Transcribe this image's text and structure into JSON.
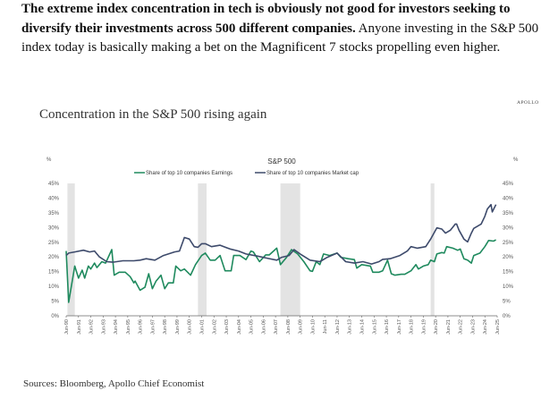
{
  "intro": {
    "bold": "The extreme index concentration in tech is obviously not good for investors seeking to diversify their investments across 500 different companies.",
    "rest": " Anyone investing in the S&P 500 index today is basically making a bet on the Magnificent 7 stocks propelling even higher."
  },
  "brand": "APOLLO",
  "figure_title": "Concentration in the S&P 500 rising again",
  "source": "Sources: Bloomberg, Apollo Chief Economist",
  "chart_data": {
    "type": "line",
    "title": "S&P 500",
    "ylabel_left": "%",
    "ylabel_right": "%",
    "ylim": [
      0,
      45
    ],
    "yticks": [
      "0%",
      "5%",
      "10%",
      "15%",
      "20%",
      "25%",
      "30%",
      "35%",
      "40%",
      "45%"
    ],
    "xlim": [
      1990.5,
      2025.5
    ],
    "xticks": [
      "Jun-90",
      "Jun-91",
      "Jun-92",
      "Jun-93",
      "Jun-94",
      "Jun-95",
      "Jun-96",
      "Jun-97",
      "Jun-98",
      "Jun-99",
      "Jun-00",
      "Jun-01",
      "Jun-02",
      "Jun-03",
      "Jun-04",
      "Jun-05",
      "Jun-06",
      "Jun-07",
      "Jun-08",
      "Jun-09",
      "Jun-10",
      "Jun-11",
      "Jun-12",
      "Jun-13",
      "Jun-14",
      "Jun-15",
      "Jun-16",
      "Jun-17",
      "Jun-18",
      "Jun-19",
      "Jun-20",
      "Jun-21",
      "Jun-22",
      "Jun-23",
      "Jun-24",
      "Jun-25"
    ],
    "legend_position": "top-center",
    "grid": false,
    "recessions": [
      [
        1990.6,
        1991.2
      ],
      [
        2001.2,
        2001.9
      ],
      [
        2007.9,
        2009.5
      ],
      [
        2020.1,
        2020.4
      ]
    ],
    "series": [
      {
        "name": "Share of top 10 companies Earnings",
        "color": "#1f8a5e",
        "points": [
          [
            1990.5,
            22
          ],
          [
            1990.7,
            4.6
          ],
          [
            1991.2,
            16.9
          ],
          [
            1991.5,
            12.8
          ],
          [
            1991.8,
            15.5
          ],
          [
            1992.0,
            12.8
          ],
          [
            1992.3,
            16.9
          ],
          [
            1992.5,
            15.9
          ],
          [
            1992.8,
            17.9
          ],
          [
            1993.0,
            16.4
          ],
          [
            1993.4,
            18.4
          ],
          [
            1993.7,
            17.9
          ],
          [
            1994.2,
            22.5
          ],
          [
            1994.4,
            13.8
          ],
          [
            1994.8,
            14.8
          ],
          [
            1995.3,
            14.8
          ],
          [
            1995.7,
            13.3
          ],
          [
            1996.0,
            11.2
          ],
          [
            1996.1,
            11.8
          ],
          [
            1996.5,
            8.7
          ],
          [
            1996.9,
            9.7
          ],
          [
            1997.2,
            14.3
          ],
          [
            1997.5,
            9.2
          ],
          [
            1997.8,
            11.8
          ],
          [
            1998.2,
            13.8
          ],
          [
            1998.5,
            9.2
          ],
          [
            1998.8,
            11.2
          ],
          [
            1999.2,
            11.2
          ],
          [
            1999.4,
            16.9
          ],
          [
            1999.8,
            15.3
          ],
          [
            2000.1,
            15.9
          ],
          [
            2000.6,
            13.8
          ],
          [
            2001.0,
            17.4
          ],
          [
            2001.5,
            20.5
          ],
          [
            2001.8,
            21.3
          ],
          [
            2002.2,
            18.9
          ],
          [
            2002.6,
            18.9
          ],
          [
            2003.0,
            20.5
          ],
          [
            2003.4,
            15.3
          ],
          [
            2003.9,
            15.3
          ],
          [
            2004.1,
            20.5
          ],
          [
            2004.6,
            20.5
          ],
          [
            2005.1,
            19.1
          ],
          [
            2005.5,
            22.0
          ],
          [
            2005.7,
            21.7
          ],
          [
            2006.2,
            18.4
          ],
          [
            2006.7,
            20.7
          ],
          [
            2007.0,
            20.7
          ],
          [
            2007.6,
            23.0
          ],
          [
            2007.9,
            17.4
          ],
          [
            2008.4,
            19.9
          ],
          [
            2008.8,
            22.5
          ],
          [
            2009.3,
            21
          ],
          [
            2009.8,
            18.4
          ],
          [
            2010.3,
            15.3
          ],
          [
            2010.5,
            15.1
          ],
          [
            2010.8,
            18.4
          ],
          [
            2011.1,
            17.4
          ],
          [
            2011.4,
            21
          ],
          [
            2011.9,
            20.5
          ],
          [
            2012.5,
            21.3
          ],
          [
            2012.8,
            19.9
          ],
          [
            2013.4,
            19.4
          ],
          [
            2013.9,
            19.1
          ],
          [
            2014.1,
            16.2
          ],
          [
            2014.5,
            17.4
          ],
          [
            2015.2,
            16.9
          ],
          [
            2015.4,
            14.8
          ],
          [
            2015.9,
            14.8
          ],
          [
            2016.2,
            15.3
          ],
          [
            2016.6,
            18.9
          ],
          [
            2016.9,
            14.3
          ],
          [
            2017.2,
            13.8
          ],
          [
            2017.7,
            14.1
          ],
          [
            2018.0,
            14.1
          ],
          [
            2018.5,
            15.3
          ],
          [
            2018.9,
            17.4
          ],
          [
            2019.1,
            15.9
          ],
          [
            2019.5,
            16.9
          ],
          [
            2019.9,
            17.4
          ],
          [
            2020.1,
            18.9
          ],
          [
            2020.4,
            18.4
          ],
          [
            2020.6,
            21
          ],
          [
            2021.0,
            21.5
          ],
          [
            2021.2,
            21.3
          ],
          [
            2021.4,
            23.5
          ],
          [
            2021.9,
            23
          ],
          [
            2022.3,
            22.3
          ],
          [
            2022.5,
            22.7
          ],
          [
            2022.8,
            19.4
          ],
          [
            2023.1,
            18.9
          ],
          [
            2023.4,
            17.9
          ],
          [
            2023.6,
            20.5
          ],
          [
            2024.1,
            21.3
          ],
          [
            2024.5,
            23.5
          ],
          [
            2024.8,
            25.6
          ],
          [
            2025.2,
            25.4
          ],
          [
            2025.4,
            25.8
          ]
        ]
      },
      {
        "name": "Share of top 10 companies Market cap",
        "color": "#3d4a6b",
        "points": [
          [
            1990.5,
            20.5
          ],
          [
            1990.7,
            21.3
          ],
          [
            1991.2,
            21.7
          ],
          [
            1991.9,
            22.3
          ],
          [
            1992.4,
            21.7
          ],
          [
            1992.8,
            22.0
          ],
          [
            1993.2,
            20
          ],
          [
            1993.8,
            18.4
          ],
          [
            1994.3,
            18.2
          ],
          [
            1995.1,
            18.7
          ],
          [
            1996.0,
            18.7
          ],
          [
            1996.5,
            18.9
          ],
          [
            1997.0,
            19.4
          ],
          [
            1997.7,
            18.9
          ],
          [
            1998.4,
            20.5
          ],
          [
            1999.3,
            21.7
          ],
          [
            1999.7,
            22.0
          ],
          [
            2000.1,
            26.6
          ],
          [
            2000.5,
            26.1
          ],
          [
            2000.9,
            23.5
          ],
          [
            2001.2,
            23.3
          ],
          [
            2001.5,
            24.5
          ],
          [
            2001.8,
            24.5
          ],
          [
            2002.3,
            23.5
          ],
          [
            2003.0,
            24.0
          ],
          [
            2003.8,
            22.7
          ],
          [
            2004.5,
            22.0
          ],
          [
            2005.1,
            21.0
          ],
          [
            2006.0,
            20.3
          ],
          [
            2006.9,
            19.5
          ],
          [
            2007.6,
            18.9
          ],
          [
            2008.0,
            19.9
          ],
          [
            2008.6,
            20.5
          ],
          [
            2009.0,
            22.5
          ],
          [
            2009.5,
            21
          ],
          [
            2010.3,
            18.9
          ],
          [
            2011.1,
            18.4
          ],
          [
            2011.7,
            19.9
          ],
          [
            2012.5,
            21.3
          ],
          [
            2013.2,
            18.4
          ],
          [
            2013.9,
            17.9
          ],
          [
            2014.6,
            18.4
          ],
          [
            2015.3,
            17.6
          ],
          [
            2015.9,
            18.4
          ],
          [
            2016.2,
            19.2
          ],
          [
            2016.8,
            19.4
          ],
          [
            2017.6,
            20.5
          ],
          [
            2018.2,
            22.0
          ],
          [
            2018.5,
            23.5
          ],
          [
            2019.0,
            23.0
          ],
          [
            2019.7,
            23.5
          ],
          [
            2020.1,
            26.1
          ],
          [
            2020.6,
            29.9
          ],
          [
            2021.0,
            29.5
          ],
          [
            2021.3,
            28.1
          ],
          [
            2021.7,
            29.1
          ],
          [
            2022.1,
            31.2
          ],
          [
            2022.2,
            31.2
          ],
          [
            2022.4,
            29.1
          ],
          [
            2022.8,
            26.1
          ],
          [
            2023.1,
            25.1
          ],
          [
            2023.4,
            28.1
          ],
          [
            2023.6,
            29.7
          ],
          [
            2024.2,
            31.2
          ],
          [
            2024.5,
            33.8
          ],
          [
            2024.7,
            36.3
          ],
          [
            2025.0,
            37.8
          ],
          [
            2025.1,
            35.3
          ],
          [
            2025.4,
            37.8
          ]
        ]
      }
    ]
  }
}
